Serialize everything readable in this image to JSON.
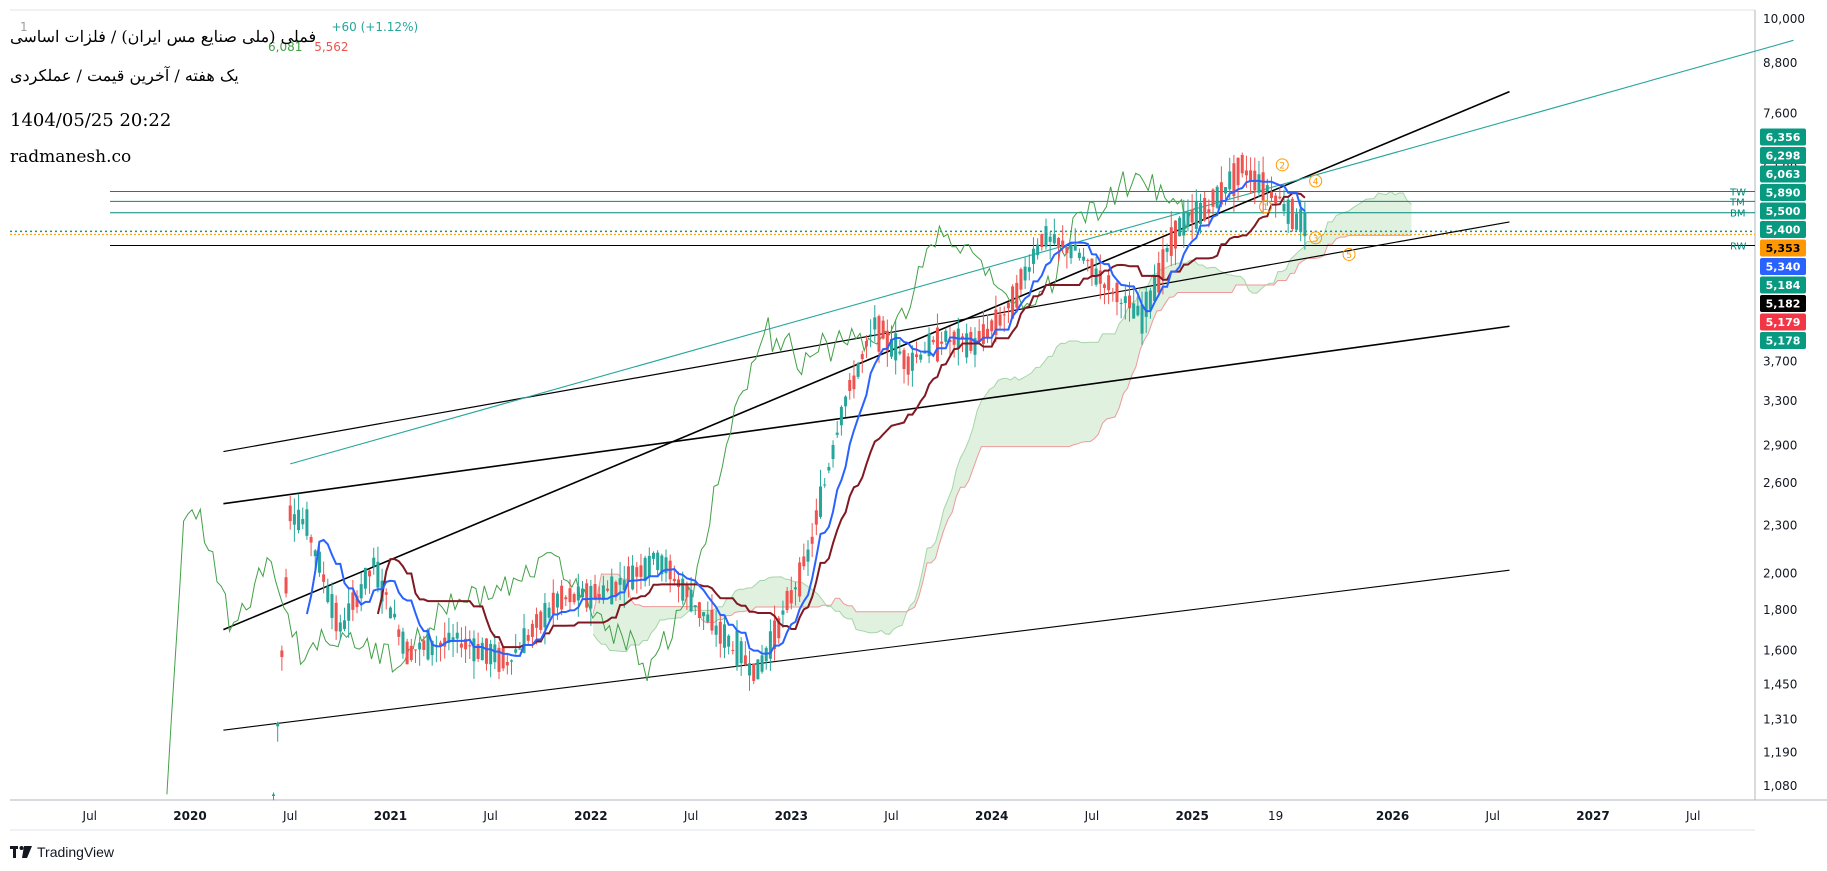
{
  "header": {
    "symbol_line": "1",
    "price_change": "+60 (+1.12%)",
    "indicator_line_vals": [
      "6,081",
      "5,562"
    ],
    "title_line1": "فملی (ملی صنایع مس ایران) / فلزات اساسی",
    "title_line2": "یک هفته / آخرین قیمت / عملکردی",
    "datetime": "1404/05/25 20:22",
    "website": "radmanesh.co"
  },
  "branding": {
    "logo_text": "TradingView"
  },
  "colors": {
    "up_candle": "#26a69a",
    "down_candle": "#ef5350",
    "tenkan": "#2962ff",
    "kijun": "#801922",
    "chikou": "#43a047",
    "cloud_bull": "#a5d6a7",
    "cloud_bear": "#ef9a9a",
    "channel": "#000000",
    "fan_line": "#26a69a",
    "level_line": "#00897b",
    "wave_label": "#ff9800"
  },
  "chart_data": {
    "type": "candlestick",
    "timeframe": "1W",
    "y_scale": "log",
    "y_ticks": [
      "10,000",
      "8,800",
      "7,600",
      "6,500",
      "5,700",
      "3,700",
      "3,300",
      "2,900",
      "2,600",
      "2,300",
      "2,000",
      "1,800",
      "1,600",
      "1,450",
      "1,310",
      "1,190",
      "1,080"
    ],
    "x_ticks": [
      "Jul",
      "2020",
      "Jul",
      "2021",
      "Jul",
      "2022",
      "Jul",
      "2023",
      "Jul",
      "2024",
      "Jul",
      "2025",
      "19",
      "2026",
      "Jul",
      "2027",
      "Jul"
    ],
    "x_tick_bold": [
      false,
      true,
      false,
      true,
      false,
      true,
      false,
      true,
      false,
      true,
      false,
      true,
      false,
      true,
      false,
      true,
      false
    ],
    "price_tags": [
      {
        "label": "6,356",
        "color": "#089981"
      },
      {
        "label": "6,298",
        "color": "#089981"
      },
      {
        "label": "6,063",
        "color": "#089981"
      },
      {
        "label": "5,890",
        "color": "#089981"
      },
      {
        "label": "5,500",
        "color": "#089981"
      },
      {
        "label": "5,400",
        "color": "#089981"
      },
      {
        "label": "5,353",
        "color": "#ff9800",
        "text_color": "#000000"
      },
      {
        "label": "5,340",
        "color": "#2962ff"
      },
      {
        "label": "5,184",
        "color": "#089981"
      },
      {
        "label": "5,182",
        "color": "#000000"
      },
      {
        "label": "5,179",
        "color": "#f23645"
      },
      {
        "label": "5,178",
        "color": "#089981"
      }
    ],
    "level_labels": [
      "RW",
      "TW",
      "TM",
      "BM"
    ],
    "wave_labels": [
      "1",
      "2",
      "3",
      "4",
      "5"
    ],
    "approx_close_series": [
      {
        "x": "2020-06",
        "close": 1050
      },
      {
        "x": "2020-07",
        "close": 2400
      },
      {
        "x": "2020-08",
        "close": 2300
      },
      {
        "x": "2020-10",
        "close": 1700
      },
      {
        "x": "2020-12",
        "close": 2050
      },
      {
        "x": "2021-02",
        "close": 1600
      },
      {
        "x": "2021-05",
        "close": 1650
      },
      {
        "x": "2021-08",
        "close": 1550
      },
      {
        "x": "2021-11",
        "close": 1850
      },
      {
        "x": "2022-02",
        "close": 1900
      },
      {
        "x": "2022-05",
        "close": 2100
      },
      {
        "x": "2022-08",
        "close": 1750
      },
      {
        "x": "2022-11",
        "close": 1500
      },
      {
        "x": "2023-02",
        "close": 2100
      },
      {
        "x": "2023-04",
        "close": 3200
      },
      {
        "x": "2023-06",
        "close": 4100
      },
      {
        "x": "2023-08",
        "close": 3700
      },
      {
        "x": "2023-10",
        "close": 3950
      },
      {
        "x": "2023-12",
        "close": 3900
      },
      {
        "x": "2024-02",
        "close": 4300
      },
      {
        "x": "2024-04",
        "close": 5300
      },
      {
        "x": "2024-06",
        "close": 5100
      },
      {
        "x": "2024-08",
        "close": 4600
      },
      {
        "x": "2024-10",
        "close": 4200
      },
      {
        "x": "2024-12",
        "close": 5400
      },
      {
        "x": "2025-02",
        "close": 5800
      },
      {
        "x": "2025-04",
        "close": 6500
      },
      {
        "x": "2025-06",
        "close": 6000
      },
      {
        "x": "2025-08",
        "close": 5400
      }
    ]
  }
}
